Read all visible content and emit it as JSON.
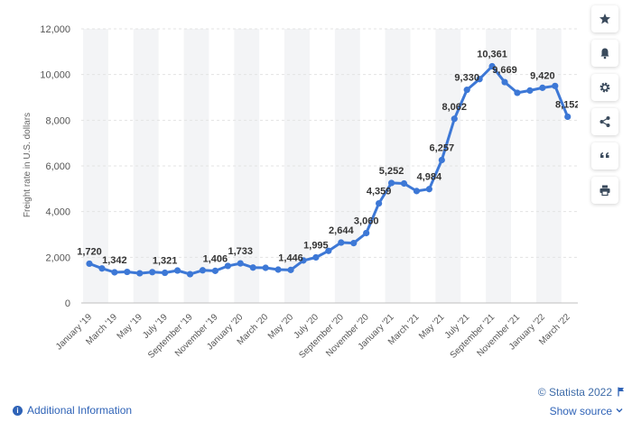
{
  "chart_data": {
    "type": "line",
    "ylabel": "Freight rate in U.S. dollars",
    "ylim": [
      0,
      12000
    ],
    "yticks": [
      0,
      2000,
      4000,
      6000,
      8000,
      10000,
      12000
    ],
    "ytick_labels": [
      "0",
      "2,000",
      "4,000",
      "6,000",
      "8,000",
      "10,000",
      "12,000"
    ],
    "x_tick_labels": [
      "January '19",
      "March '19",
      "May '19",
      "July '19",
      "September '19",
      "November '19",
      "January '20",
      "March '20",
      "May '20",
      "July '20",
      "September '20",
      "November '20",
      "January '21",
      "March '21",
      "May '21",
      "July '21",
      "September '21",
      "November '21",
      "January '22",
      "March '22"
    ],
    "series_color": "#3d78d6",
    "grid": "horizontal",
    "points": [
      {
        "x": "Jan 2019",
        "y": 1720,
        "label": "1,720"
      },
      {
        "x": "Feb 2019",
        "y": 1510
      },
      {
        "x": "Mar 2019",
        "y": 1342,
        "label": "1,342"
      },
      {
        "x": "Apr 2019",
        "y": 1360
      },
      {
        "x": "May 2019",
        "y": 1300
      },
      {
        "x": "Jun 2019",
        "y": 1350
      },
      {
        "x": "Jul 2019",
        "y": 1321,
        "label": "1,321"
      },
      {
        "x": "Aug 2019",
        "y": 1420
      },
      {
        "x": "Sep 2019",
        "y": 1260
      },
      {
        "x": "Oct 2019",
        "y": 1430
      },
      {
        "x": "Nov 2019",
        "y": 1406,
        "label": "1,406"
      },
      {
        "x": "Dec 2019",
        "y": 1620
      },
      {
        "x": "Jan 2020",
        "y": 1733,
        "label": "1,733"
      },
      {
        "x": "Feb 2020",
        "y": 1550
      },
      {
        "x": "Mar 2020",
        "y": 1540
      },
      {
        "x": "Apr 2020",
        "y": 1460
      },
      {
        "x": "May 2020",
        "y": 1446,
        "label": "1,446"
      },
      {
        "x": "Jun 2020",
        "y": 1860
      },
      {
        "x": "Jul 2020",
        "y": 1995,
        "label": "1,995"
      },
      {
        "x": "Aug 2020",
        "y": 2280
      },
      {
        "x": "Sep 2020",
        "y": 2644,
        "label": "2,644"
      },
      {
        "x": "Oct 2020",
        "y": 2620
      },
      {
        "x": "Nov 2020",
        "y": 3060,
        "label": "3,060"
      },
      {
        "x": "Dec 2020",
        "y": 4359,
        "label": "4,359"
      },
      {
        "x": "Jan 2021",
        "y": 5252,
        "label": "5,252"
      },
      {
        "x": "Feb 2021",
        "y": 5230
      },
      {
        "x": "Mar 2021",
        "y": 4900
      },
      {
        "x": "Apr 2021",
        "y": 4984,
        "label": "4,984"
      },
      {
        "x": "May 2021",
        "y": 6257,
        "label": "6,257"
      },
      {
        "x": "Jun 2021",
        "y": 8062,
        "label": "8,062"
      },
      {
        "x": "Jul 2021",
        "y": 9330,
        "label": "9,330"
      },
      {
        "x": "Aug 2021",
        "y": 9800
      },
      {
        "x": "Sep 2021",
        "y": 10361,
        "label": "10,361"
      },
      {
        "x": "Oct 2021",
        "y": 9669,
        "label": "9,669"
      },
      {
        "x": "Nov 2021",
        "y": 9200
      },
      {
        "x": "Dec 2021",
        "y": 9300
      },
      {
        "x": "Jan 2022",
        "y": 9420,
        "label": "9,420"
      },
      {
        "x": "Feb 2022",
        "y": 9500
      },
      {
        "x": "Mar 2022",
        "y": 8152,
        "label": "8,152"
      }
    ]
  },
  "footer": {
    "copyright": "© Statista 2022",
    "additional_info": "Additional Information",
    "show_source": "Show source"
  },
  "sidebar": {
    "buttons": [
      {
        "icon": "star-icon"
      },
      {
        "icon": "bell-icon"
      },
      {
        "icon": "gear-icon"
      },
      {
        "icon": "share-icon"
      },
      {
        "icon": "quote-icon"
      },
      {
        "icon": "print-icon"
      }
    ]
  }
}
